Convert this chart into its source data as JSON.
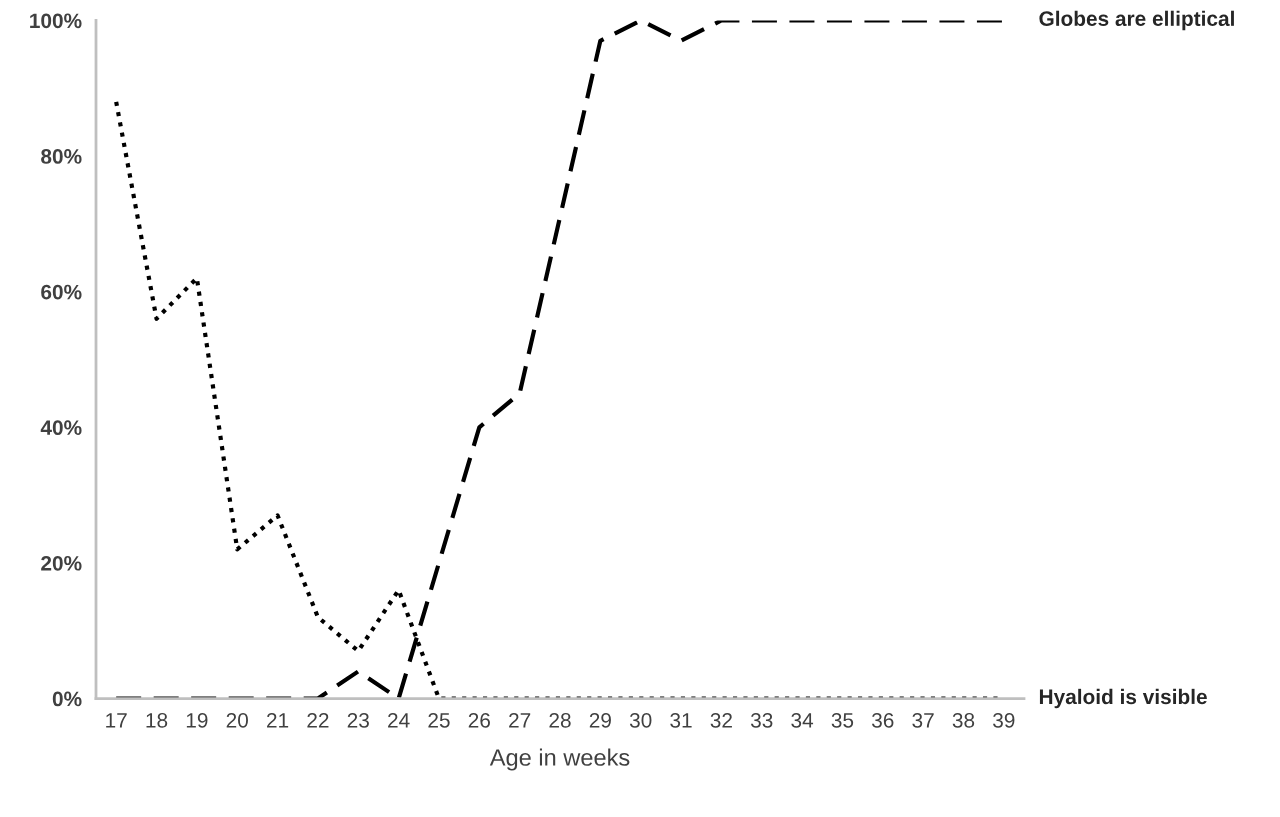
{
  "chart_data": {
    "type": "line",
    "xlabel": "Age in weeks",
    "categories": [
      "17",
      "18",
      "19",
      "20",
      "21",
      "22",
      "23",
      "24",
      "25",
      "26",
      "27",
      "28",
      "29",
      "30",
      "31",
      "32",
      "33",
      "34",
      "35",
      "36",
      "37",
      "38",
      "39"
    ],
    "series": [
      {
        "name": "Globes are elliptical",
        "color": "#000000",
        "line_style": "dashed",
        "values": [
          0,
          0,
          0,
          0,
          0,
          0,
          4,
          0,
          20,
          40,
          45,
          71,
          97,
          100,
          97,
          100,
          100,
          100,
          100,
          100,
          100,
          100,
          100
        ]
      },
      {
        "name": "Hyaloid is visible",
        "color": "#000000",
        "line_style": "dotted",
        "values": [
          88,
          56,
          62,
          22,
          27,
          12,
          7,
          16,
          0,
          0,
          0,
          0,
          0,
          0,
          0,
          0,
          0,
          0,
          0,
          0,
          0,
          0,
          0
        ]
      }
    ],
    "ylim": [
      0,
      100
    ],
    "yticks": [
      {
        "value": 0,
        "label": "0%"
      },
      {
        "value": 20,
        "label": "20%"
      },
      {
        "value": 40,
        "label": "40%"
      },
      {
        "value": 60,
        "label": "60%"
      },
      {
        "value": 80,
        "label": "80%"
      },
      {
        "value": 100,
        "label": "100%"
      }
    ],
    "grid": false,
    "legend": false,
    "marker": "none"
  }
}
